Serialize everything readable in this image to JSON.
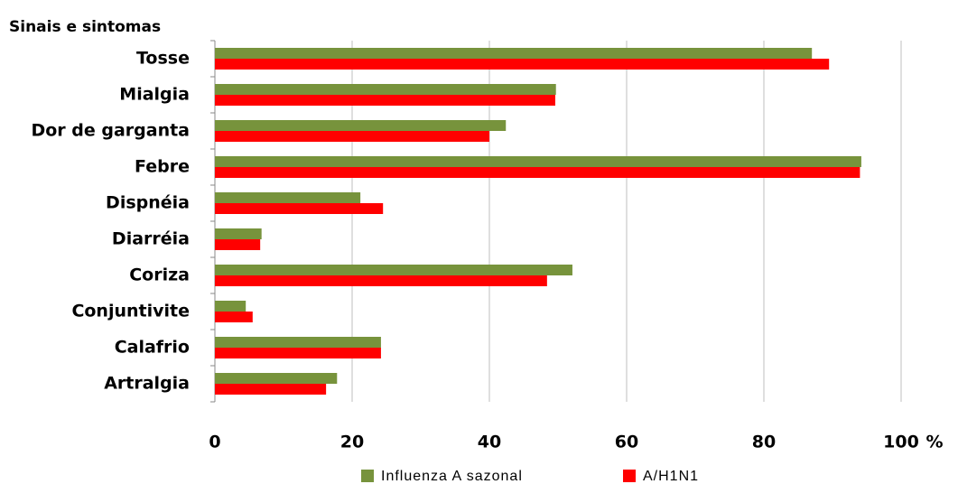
{
  "chart_data": {
    "type": "hbar",
    "y_label": "Sinais e sintomas",
    "x_label": "%",
    "categories": [
      "Tosse",
      "Mialgia",
      "Dor de garganta",
      "Febre",
      "Dispnéia",
      "Diarréia",
      "Coriza",
      "Conjuntivite",
      "Calafrio",
      "Artralgia"
    ],
    "series": [
      {
        "name": "Influenza A sazonal",
        "color": "#77933c",
        "values": [
          87,
          49.7,
          42.4,
          94.2,
          21.2,
          6.8,
          52.1,
          4.5,
          24.2,
          17.8
        ]
      },
      {
        "name": "A/H1N1",
        "color": "#ff0000",
        "values": [
          89.5,
          49.6,
          40,
          94,
          24.5,
          6.6,
          48.4,
          5.5,
          24.2,
          16.2
        ]
      }
    ],
    "xlim": [
      0,
      100
    ],
    "xticks": [
      0,
      20,
      40,
      60,
      80,
      100
    ],
    "grid": true,
    "legend": "bottom"
  }
}
